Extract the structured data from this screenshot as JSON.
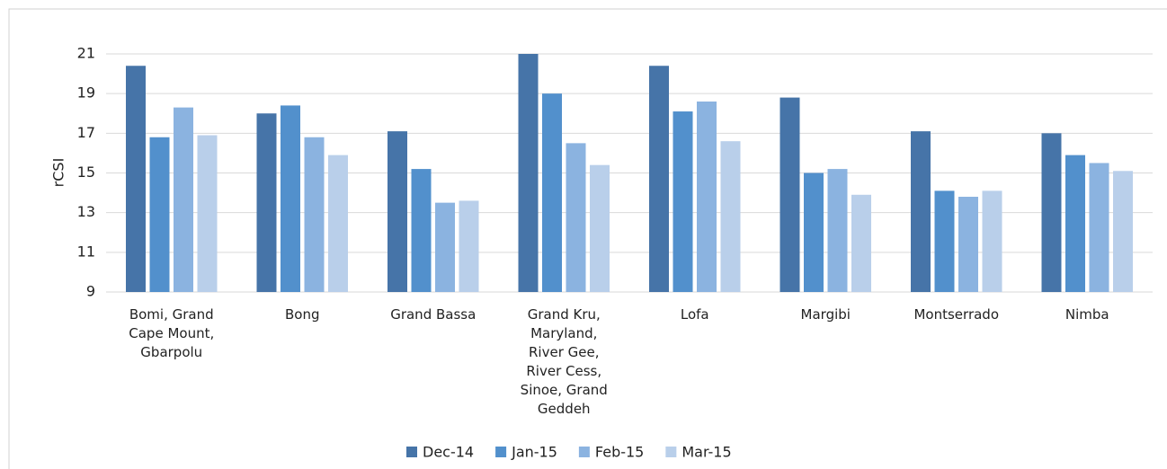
{
  "chart_data": {
    "type": "bar",
    "y_label": "rCSI",
    "categories": [
      "Bomi, Grand Cape Mount, Gbarpolu",
      "Bong",
      "Grand Bassa",
      "Grand Kru, Maryland, River Gee, River Cess, Sinoe, Grand Geddeh",
      "Lofa",
      "Margibi",
      "Montserrado",
      "Nimba"
    ],
    "series": [
      {
        "name": "Dec-14",
        "color": "#4674a8",
        "values": [
          20.4,
          18.0,
          17.1,
          21.0,
          20.4,
          18.8,
          17.1,
          17.0
        ]
      },
      {
        "name": "Jan-15",
        "color": "#5290cc",
        "values": [
          16.8,
          18.4,
          15.2,
          19.0,
          18.1,
          15.0,
          14.1,
          15.9
        ]
      },
      {
        "name": "Feb-15",
        "color": "#8bb3e0",
        "values": [
          18.3,
          16.8,
          13.5,
          16.5,
          18.6,
          15.2,
          13.8,
          15.5
        ]
      },
      {
        "name": "Mar-15",
        "color": "#b9cfea",
        "values": [
          16.9,
          15.9,
          13.6,
          15.4,
          16.6,
          13.9,
          14.1,
          15.1
        ]
      }
    ],
    "ylim": [
      9,
      21
    ],
    "yticks": [
      9,
      11,
      13,
      15,
      17,
      19,
      21
    ],
    "grid": true,
    "legend": "bottom"
  }
}
